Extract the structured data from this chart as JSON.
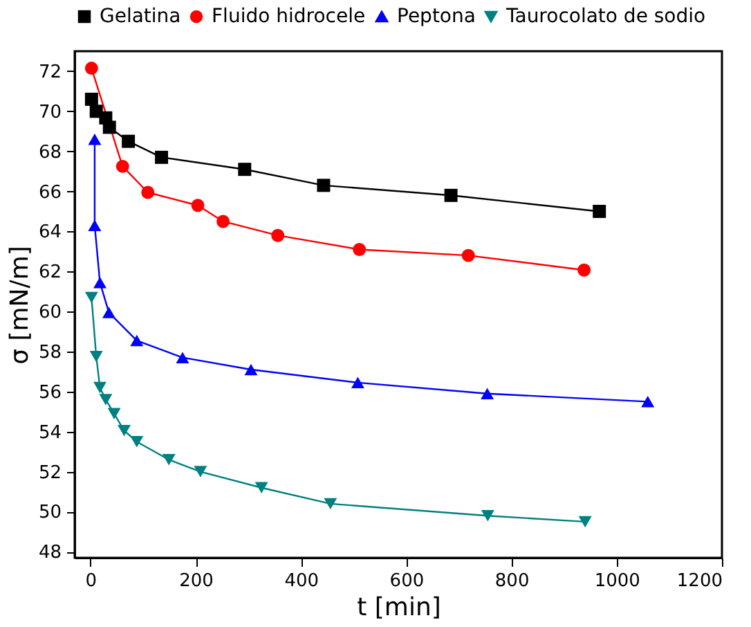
{
  "chart_data": {
    "type": "line",
    "xlabel": "t [min]",
    "ylabel": "σ [mN/m]",
    "xlim": [
      -30,
      1200
    ],
    "ylim": [
      47.7,
      73
    ],
    "xticks": [
      0,
      200,
      400,
      600,
      800,
      1000,
      1200
    ],
    "yticks": [
      48,
      50,
      52,
      54,
      56,
      58,
      60,
      62,
      64,
      66,
      68,
      70,
      72
    ],
    "grid": false,
    "legend": "top",
    "line_style": "solid",
    "series": [
      {
        "name": "Gelatina",
        "color": "#000000",
        "marker": "square",
        "x": [
          2,
          11,
          29,
          36,
          72,
          135,
          293,
          443,
          685,
          967
        ],
        "values": [
          70.6,
          70.0,
          69.67,
          69.2,
          68.5,
          67.7,
          67.1,
          66.3,
          65.8,
          65.0
        ]
      },
      {
        "name": "Fluido hidrocele",
        "color": "#ff0000",
        "marker": "circle",
        "x": [
          2,
          61,
          109,
          204,
          252,
          356,
          511,
          718,
          938
        ],
        "values": [
          72.15,
          67.25,
          65.95,
          65.3,
          64.5,
          63.8,
          63.1,
          62.8,
          62.07
        ]
      },
      {
        "name": "Peptona",
        "color": "#0000ff",
        "marker": "triangle",
        "x": [
          8,
          8,
          18,
          35,
          88,
          175,
          305,
          508,
          754,
          1059
        ],
        "values": [
          68.6,
          64.3,
          61.45,
          59.95,
          58.55,
          57.7,
          57.1,
          56.45,
          55.9,
          55.5
        ]
      },
      {
        "name": "Taurocolato de sodio",
        "color": "#008080",
        "marker": "triangle-down",
        "x": [
          2,
          11,
          18,
          29,
          45,
          64,
          88,
          149,
          209,
          325,
          456,
          755,
          940
        ],
        "values": [
          60.7,
          57.75,
          56.2,
          55.6,
          54.9,
          54.05,
          53.5,
          52.6,
          52.0,
          51.2,
          50.4,
          49.8,
          49.5
        ]
      }
    ]
  }
}
